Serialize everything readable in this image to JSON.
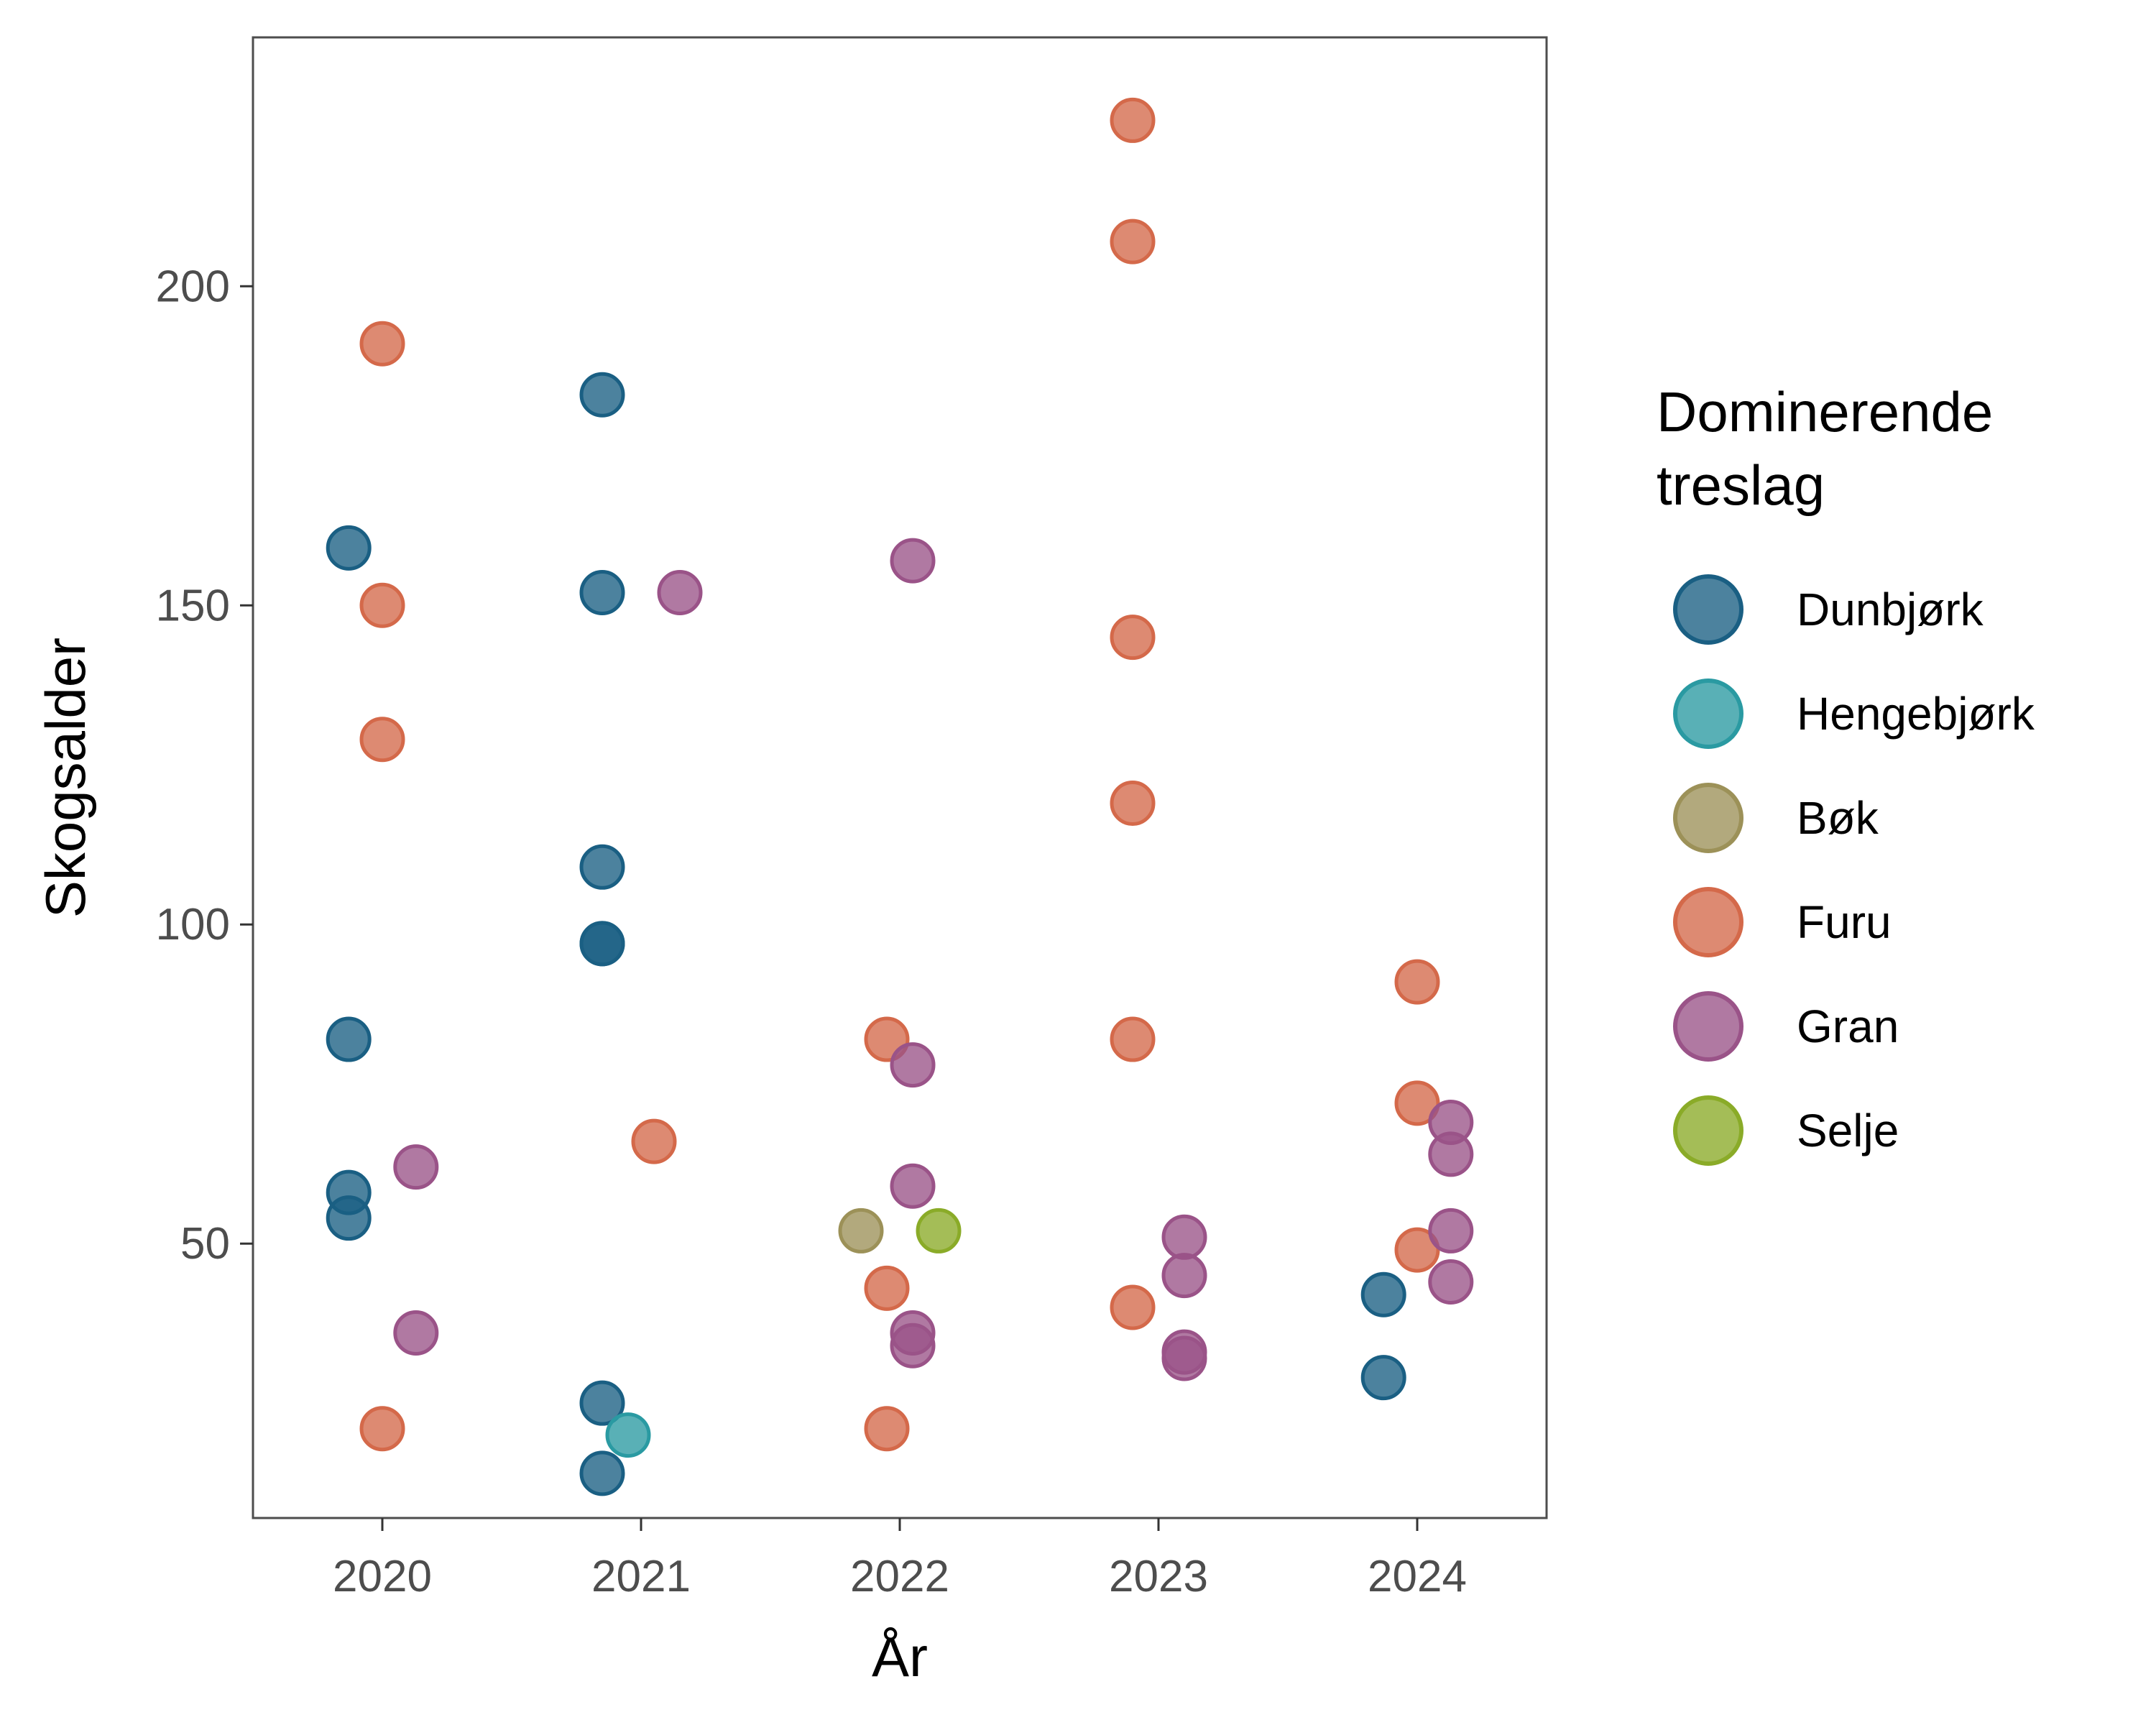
{
  "chart_data": {
    "type": "scatter",
    "xlabel": "År",
    "ylabel": "Skogsalder",
    "x_categories": [
      "2020",
      "2021",
      "2022",
      "2023",
      "2024"
    ],
    "ylim": [
      7,
      239
    ],
    "yticks": [
      50,
      100,
      150,
      200
    ],
    "grid": false,
    "legend": {
      "title_lines": [
        "Dominerende",
        "treslag"
      ],
      "position": "right",
      "entries": [
        {
          "name": "Dunbjørk",
          "color": "#1a5f83"
        },
        {
          "name": "Hengebjørk",
          "color": "#2a9aa2"
        },
        {
          "name": "Bøk",
          "color": "#9c9158"
        },
        {
          "name": "Furu",
          "color": "#d4694a"
        },
        {
          "name": "Gran",
          "color": "#9a5388"
        },
        {
          "name": "Selje",
          "color": "#8aab28"
        }
      ]
    },
    "series": [
      {
        "name": "Dunbjørk",
        "points": [
          {
            "x": "2020",
            "y": 159
          },
          {
            "x": "2020",
            "y": 82
          },
          {
            "x": "2020",
            "y": 58
          },
          {
            "x": "2020",
            "y": 54
          },
          {
            "x": "2021",
            "y": 183
          },
          {
            "x": "2021",
            "y": 152
          },
          {
            "x": "2021",
            "y": 109
          },
          {
            "x": "2021",
            "y": 97
          },
          {
            "x": "2021",
            "y": 97
          },
          {
            "x": "2021",
            "y": 25
          },
          {
            "x": "2021",
            "y": 14
          },
          {
            "x": "2024",
            "y": 42
          },
          {
            "x": "2024",
            "y": 29
          }
        ]
      },
      {
        "name": "Hengebjørk",
        "points": [
          {
            "x": "2021",
            "y": 20
          }
        ]
      },
      {
        "name": "Bøk",
        "points": [
          {
            "x": "2022",
            "y": 52
          }
        ]
      },
      {
        "name": "Furu",
        "points": [
          {
            "x": "2020",
            "y": 191
          },
          {
            "x": "2020",
            "y": 150
          },
          {
            "x": "2020",
            "y": 129
          },
          {
            "x": "2020",
            "y": 21
          },
          {
            "x": "2021",
            "y": 66
          },
          {
            "x": "2022",
            "y": 82
          },
          {
            "x": "2022",
            "y": 43
          },
          {
            "x": "2022",
            "y": 21
          },
          {
            "x": "2023",
            "y": 226
          },
          {
            "x": "2023",
            "y": 207
          },
          {
            "x": "2023",
            "y": 145
          },
          {
            "x": "2023",
            "y": 119
          },
          {
            "x": "2023",
            "y": 82
          },
          {
            "x": "2023",
            "y": 40
          },
          {
            "x": "2024",
            "y": 91
          },
          {
            "x": "2024",
            "y": 72
          },
          {
            "x": "2024",
            "y": 49
          }
        ]
      },
      {
        "name": "Gran",
        "points": [
          {
            "x": "2020",
            "y": 62
          },
          {
            "x": "2020",
            "y": 36
          },
          {
            "x": "2021",
            "y": 152
          },
          {
            "x": "2022",
            "y": 157
          },
          {
            "x": "2022",
            "y": 78
          },
          {
            "x": "2022",
            "y": 59
          },
          {
            "x": "2022",
            "y": 36
          },
          {
            "x": "2022",
            "y": 34
          },
          {
            "x": "2023",
            "y": 51
          },
          {
            "x": "2023",
            "y": 45
          },
          {
            "x": "2023",
            "y": 33
          },
          {
            "x": "2023",
            "y": 32
          },
          {
            "x": "2024",
            "y": 69
          },
          {
            "x": "2024",
            "y": 64
          },
          {
            "x": "2024",
            "y": 52
          },
          {
            "x": "2024",
            "y": 44
          }
        ]
      },
      {
        "name": "Selje",
        "points": [
          {
            "x": "2022",
            "y": 52
          }
        ]
      }
    ]
  }
}
